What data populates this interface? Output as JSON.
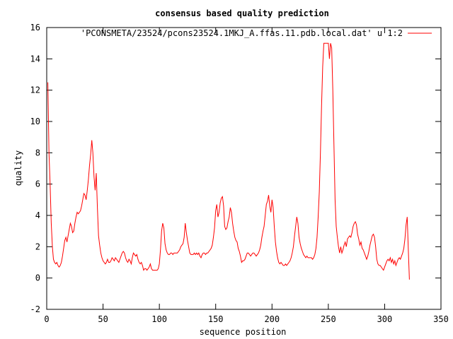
{
  "chart_data": {
    "type": "line",
    "title": "consensus based quality prediction",
    "xlabel": "sequence position",
    "ylabel": "quality",
    "xlim": [
      0,
      350
    ],
    "ylim": [
      -2,
      16
    ],
    "x_ticks": [
      0,
      50,
      100,
      150,
      200,
      250,
      300,
      350
    ],
    "y_ticks": [
      -2,
      0,
      2,
      4,
      6,
      8,
      10,
      12,
      14,
      16
    ],
    "grid": false,
    "legend_position": "top-right",
    "series": [
      {
        "name": "'PCONSMETA/23524/pcons23524.1MKJ_A.ffas.11.pdb.local.dat' u 1:2",
        "color": "#ff0000",
        "points": [
          [
            1,
            12.5
          ],
          [
            2,
            8.0
          ],
          [
            3,
            6.0
          ],
          [
            4,
            3.5
          ],
          [
            5,
            2.0
          ],
          [
            6,
            1.2
          ],
          [
            7,
            1.0
          ],
          [
            8,
            0.9
          ],
          [
            9,
            1.0
          ],
          [
            10,
            0.8
          ],
          [
            11,
            0.7
          ],
          [
            12,
            0.8
          ],
          [
            13,
            1.0
          ],
          [
            14,
            1.4
          ],
          [
            15,
            1.9
          ],
          [
            16,
            2.4
          ],
          [
            17,
            2.6
          ],
          [
            18,
            2.3
          ],
          [
            19,
            2.7
          ],
          [
            20,
            3.1
          ],
          [
            21,
            3.5
          ],
          [
            22,
            3.3
          ],
          [
            23,
            2.9
          ],
          [
            24,
            3.0
          ],
          [
            25,
            3.5
          ],
          [
            26,
            3.9
          ],
          [
            27,
            4.2
          ],
          [
            28,
            4.1
          ],
          [
            29,
            4.2
          ],
          [
            30,
            4.3
          ],
          [
            31,
            4.6
          ],
          [
            32,
            5.0
          ],
          [
            33,
            5.4
          ],
          [
            34,
            5.3
          ],
          [
            35,
            5.0
          ],
          [
            36,
            5.6
          ],
          [
            37,
            6.3
          ],
          [
            38,
            7.2
          ],
          [
            39,
            7.9
          ],
          [
            40,
            8.8
          ],
          [
            41,
            8.0
          ],
          [
            42,
            6.5
          ],
          [
            43,
            5.6
          ],
          [
            44,
            6.7
          ],
          [
            45,
            4.5
          ],
          [
            46,
            2.7
          ],
          [
            47,
            2.1
          ],
          [
            48,
            1.6
          ],
          [
            49,
            1.3
          ],
          [
            50,
            1.1
          ],
          [
            51,
            1.0
          ],
          [
            52,
            0.9
          ],
          [
            53,
            1.0
          ],
          [
            54,
            1.2
          ],
          [
            55,
            1.0
          ],
          [
            56,
            1.0
          ],
          [
            57,
            1.1
          ],
          [
            58,
            1.3
          ],
          [
            59,
            1.2
          ],
          [
            60,
            1.1
          ],
          [
            61,
            1.3
          ],
          [
            62,
            1.2
          ],
          [
            63,
            1.1
          ],
          [
            64,
            1.0
          ],
          [
            65,
            1.2
          ],
          [
            66,
            1.4
          ],
          [
            67,
            1.6
          ],
          [
            68,
            1.7
          ],
          [
            69,
            1.6
          ],
          [
            70,
            1.3
          ],
          [
            71,
            1.1
          ],
          [
            72,
            1.0
          ],
          [
            73,
            1.2
          ],
          [
            74,
            1.1
          ],
          [
            75,
            0.9
          ],
          [
            76,
            1.3
          ],
          [
            77,
            1.6
          ],
          [
            78,
            1.5
          ],
          [
            79,
            1.4
          ],
          [
            80,
            1.5
          ],
          [
            81,
            1.2
          ],
          [
            82,
            1.0
          ],
          [
            83,
            0.9
          ],
          [
            84,
            1.0
          ],
          [
            85,
            0.8
          ],
          [
            86,
            0.5
          ],
          [
            87,
            0.6
          ],
          [
            88,
            0.6
          ],
          [
            89,
            0.5
          ],
          [
            90,
            0.6
          ],
          [
            91,
            0.7
          ],
          [
            92,
            0.9
          ],
          [
            93,
            0.6
          ],
          [
            94,
            0.5
          ],
          [
            95,
            0.5
          ],
          [
            96,
            0.5
          ],
          [
            97,
            0.5
          ],
          [
            98,
            0.5
          ],
          [
            99,
            0.6
          ],
          [
            100,
            0.9
          ],
          [
            101,
            1.8
          ],
          [
            102,
            3.0
          ],
          [
            103,
            3.5
          ],
          [
            104,
            3.2
          ],
          [
            105,
            2.2
          ],
          [
            106,
            1.8
          ],
          [
            107,
            1.6
          ],
          [
            108,
            1.5
          ],
          [
            109,
            1.5
          ],
          [
            110,
            1.6
          ],
          [
            111,
            1.6
          ],
          [
            112,
            1.5
          ],
          [
            113,
            1.6
          ],
          [
            114,
            1.6
          ],
          [
            115,
            1.6
          ],
          [
            116,
            1.6
          ],
          [
            117,
            1.7
          ],
          [
            118,
            1.8
          ],
          [
            119,
            2.0
          ],
          [
            120,
            2.1
          ],
          [
            121,
            2.2
          ],
          [
            122,
            2.6
          ],
          [
            123,
            3.5
          ],
          [
            124,
            2.9
          ],
          [
            125,
            2.4
          ],
          [
            126,
            2.0
          ],
          [
            127,
            1.6
          ],
          [
            128,
            1.5
          ],
          [
            129,
            1.5
          ],
          [
            130,
            1.5
          ],
          [
            131,
            1.6
          ],
          [
            132,
            1.5
          ],
          [
            133,
            1.6
          ],
          [
            134,
            1.5
          ],
          [
            135,
            1.6
          ],
          [
            136,
            1.4
          ],
          [
            137,
            1.3
          ],
          [
            138,
            1.5
          ],
          [
            139,
            1.6
          ],
          [
            140,
            1.6
          ],
          [
            141,
            1.5
          ],
          [
            142,
            1.6
          ],
          [
            143,
            1.6
          ],
          [
            144,
            1.7
          ],
          [
            145,
            1.8
          ],
          [
            146,
            1.9
          ],
          [
            147,
            2.1
          ],
          [
            148,
            2.6
          ],
          [
            149,
            3.2
          ],
          [
            150,
            4.3
          ],
          [
            151,
            4.7
          ],
          [
            152,
            3.9
          ],
          [
            153,
            4.2
          ],
          [
            154,
            4.8
          ],
          [
            155,
            5.1
          ],
          [
            156,
            5.2
          ],
          [
            157,
            4.6
          ],
          [
            158,
            3.3
          ],
          [
            159,
            3.1
          ],
          [
            160,
            3.2
          ],
          [
            161,
            3.6
          ],
          [
            162,
            3.9
          ],
          [
            163,
            4.5
          ],
          [
            164,
            4.2
          ],
          [
            165,
            3.5
          ],
          [
            166,
            3.0
          ],
          [
            167,
            2.6
          ],
          [
            168,
            2.4
          ],
          [
            169,
            2.3
          ],
          [
            170,
            1.9
          ],
          [
            171,
            1.7
          ],
          [
            172,
            1.4
          ],
          [
            173,
            1.0
          ],
          [
            174,
            1.1
          ],
          [
            175,
            1.1
          ],
          [
            176,
            1.2
          ],
          [
            177,
            1.4
          ],
          [
            178,
            1.6
          ],
          [
            179,
            1.6
          ],
          [
            180,
            1.5
          ],
          [
            181,
            1.4
          ],
          [
            182,
            1.5
          ],
          [
            183,
            1.6
          ],
          [
            184,
            1.6
          ],
          [
            185,
            1.5
          ],
          [
            186,
            1.4
          ],
          [
            187,
            1.5
          ],
          [
            188,
            1.6
          ],
          [
            189,
            1.8
          ],
          [
            190,
            2.1
          ],
          [
            191,
            2.6
          ],
          [
            192,
            3.0
          ],
          [
            193,
            3.3
          ],
          [
            194,
            4.0
          ],
          [
            195,
            4.7
          ],
          [
            196,
            4.9
          ],
          [
            197,
            5.3
          ],
          [
            198,
            4.6
          ],
          [
            199,
            4.2
          ],
          [
            200,
            5.0
          ],
          [
            201,
            4.5
          ],
          [
            202,
            3.3
          ],
          [
            203,
            2.3
          ],
          [
            204,
            1.7
          ],
          [
            205,
            1.3
          ],
          [
            206,
            1.0
          ],
          [
            207,
            0.9
          ],
          [
            208,
            1.0
          ],
          [
            209,
            0.9
          ],
          [
            210,
            0.8
          ],
          [
            211,
            0.8
          ],
          [
            212,
            0.9
          ],
          [
            213,
            0.8
          ],
          [
            214,
            0.9
          ],
          [
            215,
            1.0
          ],
          [
            216,
            1.1
          ],
          [
            217,
            1.3
          ],
          [
            218,
            1.6
          ],
          [
            219,
            2.0
          ],
          [
            220,
            2.7
          ],
          [
            221,
            3.3
          ],
          [
            222,
            3.9
          ],
          [
            223,
            3.5
          ],
          [
            224,
            2.6
          ],
          [
            225,
            2.2
          ],
          [
            226,
            1.9
          ],
          [
            227,
            1.7
          ],
          [
            228,
            1.5
          ],
          [
            229,
            1.4
          ],
          [
            230,
            1.3
          ],
          [
            231,
            1.4
          ],
          [
            232,
            1.3
          ],
          [
            233,
            1.3
          ],
          [
            234,
            1.3
          ],
          [
            235,
            1.3
          ],
          [
            236,
            1.2
          ],
          [
            237,
            1.3
          ],
          [
            238,
            1.5
          ],
          [
            239,
            1.9
          ],
          [
            240,
            2.6
          ],
          [
            241,
            3.9
          ],
          [
            242,
            5.5
          ],
          [
            243,
            8.0
          ],
          [
            244,
            11.0
          ],
          [
            245,
            13.5
          ],
          [
            246,
            15.0
          ],
          [
            247,
            15.0
          ],
          [
            248,
            15.0
          ],
          [
            249,
            15.0
          ],
          [
            250,
            15.0
          ],
          [
            251,
            14.0
          ],
          [
            252,
            15.0
          ],
          [
            253,
            14.7
          ],
          [
            254,
            12.0
          ],
          [
            255,
            8.5
          ],
          [
            256,
            5.0
          ],
          [
            257,
            3.3
          ],
          [
            258,
            2.6
          ],
          [
            259,
            2.0
          ],
          [
            260,
            1.6
          ],
          [
            261,
            2.0
          ],
          [
            262,
            1.6
          ],
          [
            263,
            1.8
          ],
          [
            264,
            2.1
          ],
          [
            265,
            2.3
          ],
          [
            266,
            2.0
          ],
          [
            267,
            2.5
          ],
          [
            268,
            2.6
          ],
          [
            269,
            2.7
          ],
          [
            270,
            2.6
          ],
          [
            271,
            2.9
          ],
          [
            272,
            3.3
          ],
          [
            273,
            3.5
          ],
          [
            274,
            3.6
          ],
          [
            275,
            3.4
          ],
          [
            276,
            2.8
          ],
          [
            277,
            2.5
          ],
          [
            278,
            2.1
          ],
          [
            279,
            2.3
          ],
          [
            280,
            1.9
          ],
          [
            281,
            1.8
          ],
          [
            282,
            1.6
          ],
          [
            283,
            1.4
          ],
          [
            284,
            1.2
          ],
          [
            285,
            1.4
          ],
          [
            286,
            1.7
          ],
          [
            287,
            2.1
          ],
          [
            288,
            2.4
          ],
          [
            289,
            2.7
          ],
          [
            290,
            2.8
          ],
          [
            291,
            2.6
          ],
          [
            292,
            2.0
          ],
          [
            293,
            1.2
          ],
          [
            294,
            0.9
          ],
          [
            295,
            0.8
          ],
          [
            296,
            0.8
          ],
          [
            297,
            0.7
          ],
          [
            298,
            0.6
          ],
          [
            299,
            0.5
          ],
          [
            300,
            0.7
          ],
          [
            301,
            0.9
          ],
          [
            302,
            1.1
          ],
          [
            303,
            1.2
          ],
          [
            304,
            1.1
          ],
          [
            305,
            1.3
          ],
          [
            306,
            1.0
          ],
          [
            307,
            1.2
          ],
          [
            308,
            0.9
          ],
          [
            309,
            1.1
          ],
          [
            310,
            0.8
          ],
          [
            311,
            1.0
          ],
          [
            312,
            1.2
          ],
          [
            313,
            1.3
          ],
          [
            314,
            1.2
          ],
          [
            315,
            1.4
          ],
          [
            316,
            1.6
          ],
          [
            317,
            1.9
          ],
          [
            318,
            2.5
          ],
          [
            319,
            3.4
          ],
          [
            320,
            3.9
          ],
          [
            321,
            1.9
          ],
          [
            322,
            -0.1
          ]
        ]
      }
    ]
  }
}
